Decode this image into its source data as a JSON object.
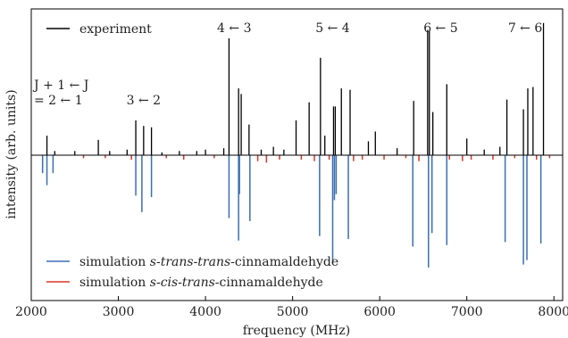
{
  "chart_data": {
    "type": "line",
    "xlabel": "frequency (MHz)",
    "ylabel": "intensity (arb. units)",
    "xlim": [
      2000,
      8100
    ],
    "xticks": [
      "2000",
      "3000",
      "4000",
      "5000",
      "6000",
      "7000",
      "8000"
    ],
    "xtick_values": [
      2000,
      3000,
      4000,
      5000,
      6000,
      7000,
      8000
    ],
    "ylim": [
      -1.0,
      1.0
    ],
    "grid": false,
    "legend_placement": "top-left / bottom-left",
    "band_labels": [
      {
        "text": "J + 1 ← J",
        "text2": "= 2 ← 1",
        "x": 2350
      },
      {
        "text": "3 ← 2",
        "x": 3290
      },
      {
        "text": "4 ← 3",
        "x": 4330
      },
      {
        "text": "5 ← 4",
        "x": 5460
      },
      {
        "text": "6 ← 5",
        "x": 6700
      },
      {
        "text": "7 ← 6",
        "x": 7670
      }
    ],
    "series": [
      {
        "name": "experiment",
        "color": "#000000",
        "x": [
          2180,
          2270,
          2500,
          2770,
          2900,
          3100,
          3200,
          3290,
          3380,
          3500,
          3700,
          3900,
          4000,
          4210,
          4270,
          4380,
          4410,
          4500,
          4640,
          4780,
          4900,
          5040,
          5190,
          5320,
          5370,
          5470,
          5490,
          5560,
          5660,
          5870,
          5950,
          6200,
          6390,
          6550,
          6570,
          6610,
          6770,
          7000,
          7200,
          7380,
          7460,
          7650,
          7700,
          7760,
          7880
        ],
        "values": [
          0.14,
          0.03,
          0.03,
          0.11,
          0.03,
          0.04,
          0.25,
          0.21,
          0.2,
          0.02,
          0.03,
          0.03,
          0.04,
          0.05,
          0.84,
          0.48,
          0.44,
          0.22,
          0.04,
          0.06,
          0.04,
          0.25,
          0.38,
          0.7,
          0.14,
          0.35,
          0.35,
          0.48,
          0.47,
          0.1,
          0.17,
          0.05,
          0.39,
          0.9,
          0.89,
          0.31,
          0.51,
          0.12,
          0.04,
          0.06,
          0.4,
          0.33,
          0.48,
          0.49,
          0.95
        ]
      },
      {
        "name": "simulation s-trans-trans-cinnamaldehyde",
        "name_prefix": "simulation ",
        "name_italic": "s-trans-trans",
        "name_suffix": "-cinnamaldehyde",
        "color": "#3a6fb0",
        "x": [
          2130,
          2180,
          2250,
          3200,
          3270,
          3380,
          4270,
          4380,
          4390,
          4510,
          5310,
          5460,
          5480,
          5500,
          5640,
          6380,
          6560,
          6600,
          6770,
          7440,
          7650,
          7690,
          7850
        ],
        "values": [
          -0.12,
          -0.2,
          -0.12,
          -0.27,
          -0.38,
          -0.28,
          -0.42,
          -0.57,
          -0.26,
          -0.44,
          -0.54,
          -0.72,
          -0.3,
          -0.26,
          -0.56,
          -0.61,
          -0.75,
          -0.52,
          -0.6,
          -0.58,
          -0.73,
          -0.7,
          -0.59
        ]
      },
      {
        "name": "simulation s-cis-trans-cinnamaldehyde",
        "name_prefix": "simulation ",
        "name_italic": "s-cis-trans",
        "name_suffix": "-cinnamaldehyde",
        "color": "#d9372b",
        "x": [
          2600,
          2850,
          3150,
          3550,
          3750,
          4100,
          4600,
          4700,
          4850,
          5100,
          5250,
          5420,
          5700,
          5800,
          6050,
          6300,
          6450,
          6800,
          6950,
          7050,
          7300,
          7550,
          7800,
          7950
        ],
        "values": [
          -0.02,
          -0.02,
          -0.03,
          -0.02,
          -0.03,
          -0.02,
          -0.04,
          -0.05,
          -0.03,
          -0.03,
          -0.04,
          -0.03,
          -0.04,
          -0.03,
          -0.03,
          -0.02,
          -0.04,
          -0.03,
          -0.04,
          -0.03,
          -0.03,
          -0.02,
          -0.03,
          -0.02
        ]
      }
    ]
  }
}
